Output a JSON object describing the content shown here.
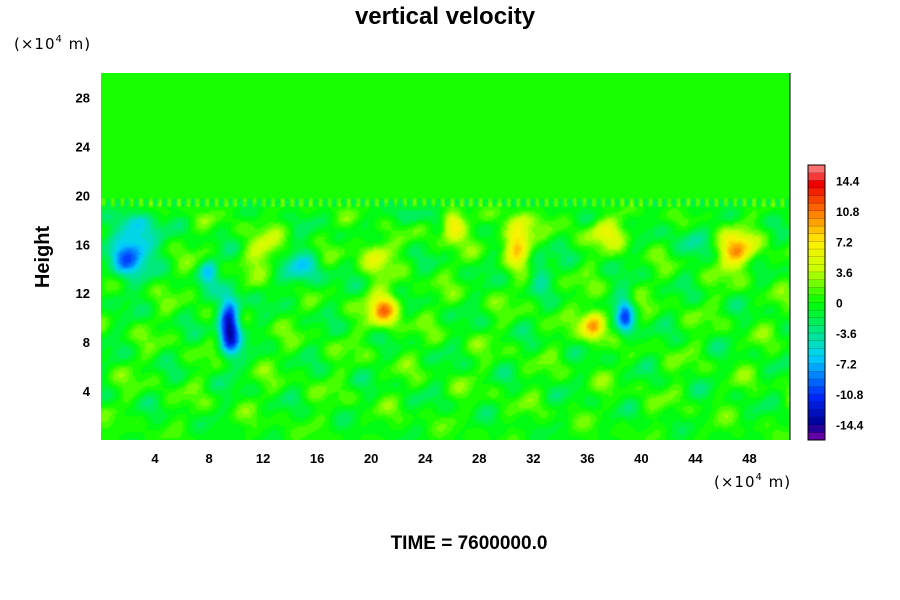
{
  "chart_data": {
    "type": "heatmap",
    "title": "vertical velocity",
    "ylabel": "Height",
    "x_unit": "(×10",
    "x_unit_exp": "4",
    "x_unit_tail": " m)",
    "y_unit": "(×10",
    "y_unit_exp": "4",
    "y_unit_tail": " m)",
    "xlim": [
      0,
      51
    ],
    "ylim": [
      0,
      30
    ],
    "x_ticks": [
      "4",
      "8",
      "12",
      "16",
      "20",
      "24",
      "28",
      "32",
      "36",
      "40",
      "44",
      "48"
    ],
    "x_tick_values": [
      4,
      8,
      12,
      16,
      20,
      24,
      28,
      32,
      36,
      40,
      44,
      48
    ],
    "y_ticks": [
      "4",
      "8",
      "12",
      "16",
      "20",
      "24",
      "28"
    ],
    "y_tick_values": [
      4,
      8,
      12,
      16,
      20,
      24,
      28
    ],
    "colorbar": {
      "range": [
        -16.2,
        16.2
      ],
      "tick_labels": [
        "14.4",
        "10.8",
        "7.2",
        "3.6",
        "0",
        "-3.6",
        "-7.2",
        "-10.8",
        "-14.4"
      ],
      "tick_values": [
        14.4,
        10.8,
        7.2,
        3.6,
        0,
        -3.6,
        -7.2,
        -10.8,
        -14.4
      ],
      "levels": 36
    },
    "quiet_above_height": 19.5,
    "features": [
      {
        "x": 2.5,
        "y": 16.3,
        "value": -8.5,
        "sx": 1.0,
        "sy": 1.6
      },
      {
        "x": 1.5,
        "y": 14.5,
        "value": -5.5,
        "sx": 0.8,
        "sy": 1.2
      },
      {
        "x": 8.0,
        "y": 13.8,
        "value": -6.0,
        "sx": 0.5,
        "sy": 0.7
      },
      {
        "x": 9.5,
        "y": 9.4,
        "value": -15.0,
        "sx": 0.55,
        "sy": 1.7
      },
      {
        "x": 21.0,
        "y": 10.7,
        "value": 9.5,
        "sx": 0.8,
        "sy": 1.0
      },
      {
        "x": 20.3,
        "y": 15.2,
        "value": 5.5,
        "sx": 0.8,
        "sy": 0.9
      },
      {
        "x": 26.0,
        "y": 17.7,
        "value": 8.5,
        "sx": 0.6,
        "sy": 0.9
      },
      {
        "x": 30.8,
        "y": 16.4,
        "value": 10.0,
        "sx": 0.65,
        "sy": 1.3
      },
      {
        "x": 36.5,
        "y": 9.4,
        "value": 10.5,
        "sx": 0.6,
        "sy": 0.9
      },
      {
        "x": 38.8,
        "y": 10.0,
        "value": -9.0,
        "sx": 0.5,
        "sy": 1.3
      },
      {
        "x": 47.0,
        "y": 15.5,
        "value": 9.0,
        "sx": 1.0,
        "sy": 1.0
      },
      {
        "x": 15.0,
        "y": 14.0,
        "value": -5.0,
        "sx": 1.0,
        "sy": 1.2
      },
      {
        "x": 23.0,
        "y": 18.5,
        "value": -3.5,
        "sx": 1.2,
        "sy": 0.7
      },
      {
        "x": 32.5,
        "y": 14.0,
        "value": -4.0,
        "sx": 0.6,
        "sy": 1.0
      },
      {
        "x": 43.5,
        "y": 16.5,
        "value": -3.0,
        "sx": 0.9,
        "sy": 1.1
      },
      {
        "x": 12.0,
        "y": 15.5,
        "value": 4.0,
        "sx": 1.0,
        "sy": 1.0
      },
      {
        "x": 37.5,
        "y": 17.0,
        "value": 4.5,
        "sx": 1.2,
        "sy": 0.8
      }
    ]
  },
  "footer": {
    "time_label": "TIME = 7600000.0"
  }
}
